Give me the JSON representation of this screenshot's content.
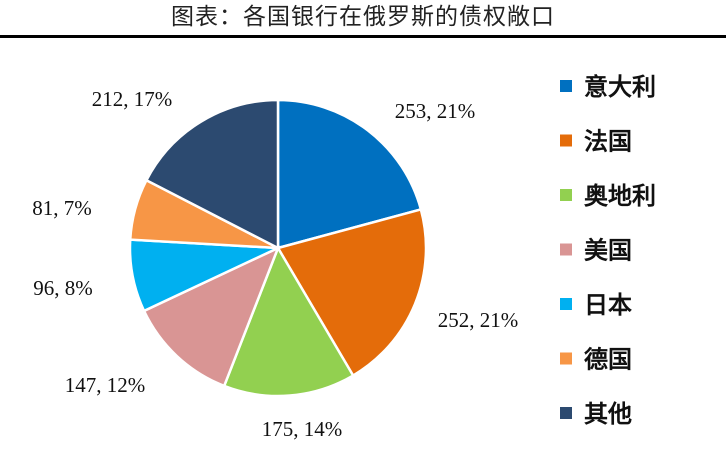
{
  "chart_data": {
    "type": "pie",
    "title": "图表：各国银行在俄罗斯的债权敞口",
    "categories": [
      "意大利",
      "法国",
      "奥地利",
      "美国",
      "日本",
      "德国",
      "其他"
    ],
    "values": [
      253,
      252,
      175,
      147,
      96,
      81,
      212
    ],
    "data_labels": [
      "253, 21%",
      "252, 21%",
      "175, 14%",
      "147, 12%",
      "96, 8%",
      "81, 7%",
      "212, 17%"
    ],
    "colors": [
      "#0070C0",
      "#E46C0A",
      "#92D050",
      "#D99594",
      "#00B0F0",
      "#F79646",
      "#2C4A70"
    ],
    "legend_position": "right",
    "start_angle": "12 o'clock",
    "direction": "clockwise"
  }
}
